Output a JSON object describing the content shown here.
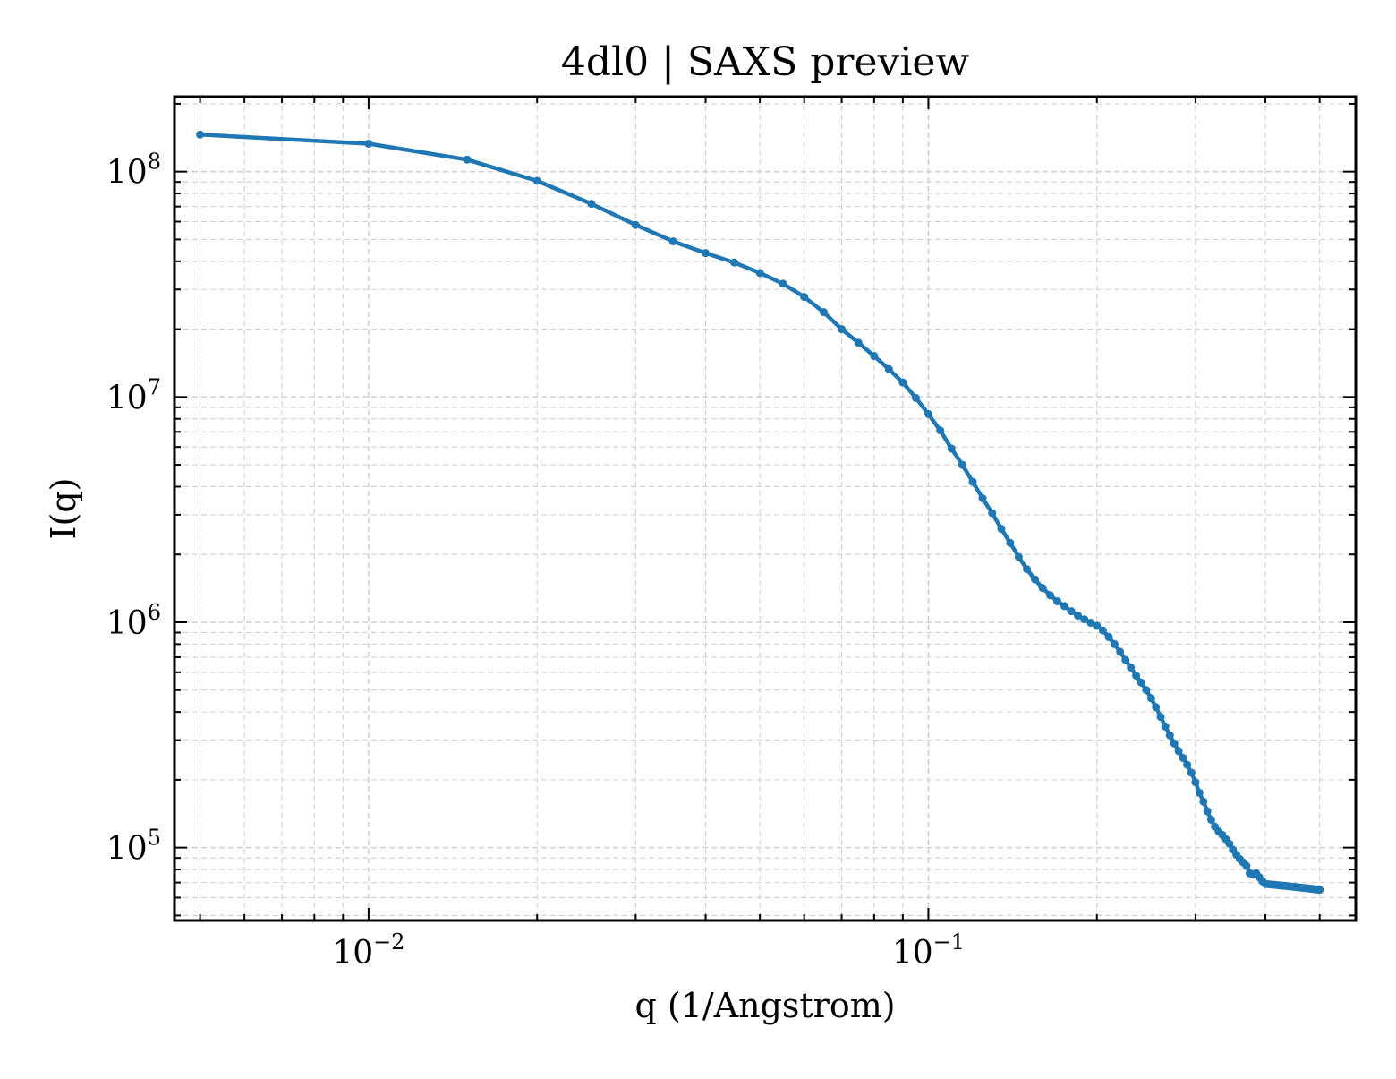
{
  "chart_data": {
    "type": "line",
    "title": "4dl0 | SAXS preview",
    "xlabel": "q (1/Angstrom)",
    "ylabel": "I(q)",
    "xscale": "log",
    "yscale": "log",
    "xlim": [
      0.0045,
      0.58
    ],
    "ylim": [
      47500,
      215000000
    ],
    "grid": true,
    "legend": "none",
    "x_ticks": [
      {
        "value": 0.01,
        "base": "10",
        "exp": "−2"
      },
      {
        "value": 0.1,
        "base": "10",
        "exp": "−1"
      }
    ],
    "y_ticks": [
      {
        "value": 100000,
        "base": "10",
        "exp": "5"
      },
      {
        "value": 1000000,
        "base": "10",
        "exp": "6"
      },
      {
        "value": 10000000,
        "base": "10",
        "exp": "7"
      },
      {
        "value": 100000000,
        "base": "10",
        "exp": "8"
      }
    ],
    "colors": {
      "line": "#1f77b4",
      "grid": "#d0d0d0"
    },
    "series": [
      {
        "x": [
          0.005,
          0.01,
          0.015,
          0.02,
          0.025,
          0.03,
          0.035,
          0.04,
          0.045,
          0.05,
          0.055,
          0.06,
          0.065,
          0.07,
          0.075,
          0.08,
          0.085,
          0.09,
          0.095,
          0.1,
          0.105,
          0.11,
          0.115,
          0.12,
          0.125,
          0.13,
          0.135,
          0.14,
          0.145,
          0.15,
          0.155,
          0.16,
          0.165,
          0.17,
          0.175,
          0.18,
          0.185,
          0.19,
          0.195,
          0.2,
          0.205,
          0.21,
          0.215,
          0.22,
          0.225,
          0.23,
          0.235,
          0.24,
          0.245,
          0.25,
          0.255,
          0.26,
          0.265,
          0.27,
          0.275,
          0.28,
          0.285,
          0.29,
          0.295,
          0.3,
          0.305,
          0.31,
          0.315,
          0.32,
          0.325,
          0.33,
          0.335,
          0.34,
          0.345,
          0.35,
          0.355,
          0.36,
          0.365,
          0.37,
          0.375,
          0.38,
          0.385,
          0.39,
          0.395,
          0.4,
          0.405,
          0.41,
          0.415,
          0.42,
          0.425,
          0.43,
          0.435,
          0.44,
          0.445,
          0.45,
          0.455,
          0.46,
          0.465,
          0.47,
          0.475,
          0.48,
          0.485,
          0.49,
          0.495,
          0.5
        ],
        "values": [
          146000000,
          133000000,
          113000000,
          91000000,
          72000000,
          58000000,
          49000000,
          43500000,
          39500000,
          35500000,
          31800000,
          27800000,
          23800000,
          20000000,
          17400000,
          15200000,
          13300000,
          11600000,
          9900000,
          8400000,
          7100000,
          5900000,
          5000000,
          4200000,
          3550000,
          3050000,
          2600000,
          2250000,
          1950000,
          1720000,
          1550000,
          1420000,
          1320000,
          1240000,
          1180000,
          1120000,
          1070000,
          1030000,
          995000,
          965000,
          920000,
          860000,
          800000,
          740000,
          680000,
          630000,
          580000,
          540000,
          500000,
          460000,
          420000,
          380000,
          345000,
          315000,
          290000,
          268000,
          250000,
          233000,
          215000,
          195000,
          175000,
          160000,
          145000,
          133000,
          124000,
          118000,
          114000,
          109000,
          104000,
          98000,
          93000,
          89000,
          86000,
          83000,
          77000,
          76000,
          77000,
          74000,
          71000,
          69000,
          68800,
          68600,
          68400,
          68200,
          68000,
          67800,
          67600,
          67400,
          67200,
          67000,
          66800,
          66600,
          66400,
          66200,
          66000,
          65800,
          65600,
          65400,
          65200,
          65000
        ]
      }
    ]
  }
}
